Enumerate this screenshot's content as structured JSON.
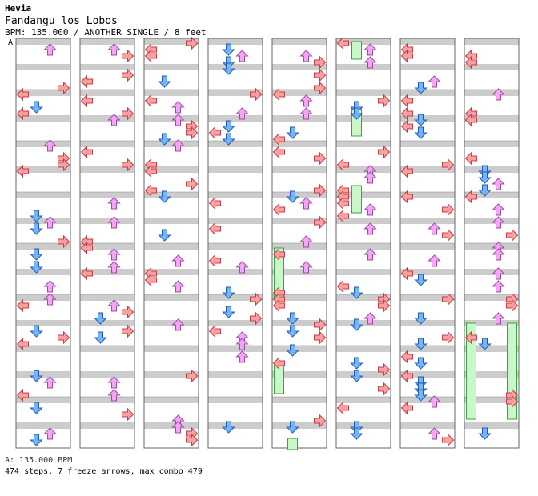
{
  "song": {
    "artist": "Hevia",
    "title": "Fandangu los Lobos",
    "info": "BPM: 135.000 / ANOTHER SINGLE / 8 feet"
  },
  "bpm_marker": "A",
  "legend": {
    "bpm_line": "A: 135.000 BPM",
    "summary": "474 steps, 7 freeze arrows, max combo 479"
  },
  "colors": {
    "left": "#ff9e9e",
    "down": "#6fb6ff",
    "up": "#f3a6f3",
    "right": "#ff9e9e",
    "stroke_pink": "#c0404a",
    "stroke_blue": "#2c5aa8",
    "stroke_violet": "#9c4ca8",
    "freeze": "#c9f7c9",
    "freeze_stroke": "#3aa53a",
    "stripe": "#cccccc"
  },
  "chart_data": {
    "type": "stepchart",
    "lanes": [
      "left-arrow-icon",
      "down-arrow-icon",
      "up-arrow-icon",
      "right-arrow-icon"
    ],
    "columns": 8,
    "measures_per_column": 8,
    "total_steps": 474,
    "freeze_arrows": 7,
    "max_combo": 479,
    "bpm": 135.0
  }
}
